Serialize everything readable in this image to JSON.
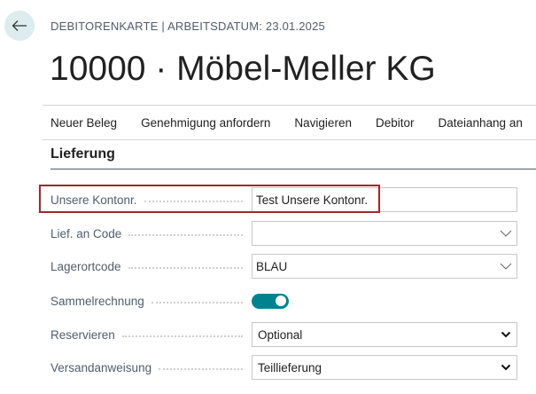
{
  "header": {
    "breadcrumb": "DEBITORENKARTE | ARBEITSDATUM: 23.01.2025",
    "title": "10000 · Möbel-Meller KG"
  },
  "actions": [
    "Neuer Beleg",
    "Genehmigung anfordern",
    "Navigieren",
    "Debitor",
    "Dateianhang an"
  ],
  "section": {
    "title": "Lieferung"
  },
  "fields": [
    {
      "label": "Unsere Kontonr.",
      "value": "Test Unsere Kontonr.",
      "type": "text",
      "highlighted": true
    },
    {
      "label": "Lief. an Code",
      "value": "",
      "type": "lookup"
    },
    {
      "label": "Lagerortcode",
      "value": "BLAU",
      "type": "lookup"
    },
    {
      "label": "Sammelrechnung",
      "value": true,
      "type": "toggle"
    },
    {
      "label": "Reservieren",
      "value": "Optional",
      "type": "select"
    },
    {
      "label": "Versandanweisung",
      "value": "Teillieferung",
      "type": "select"
    }
  ],
  "colors": {
    "accent": "#00838f",
    "highlight": "#a4262c"
  }
}
